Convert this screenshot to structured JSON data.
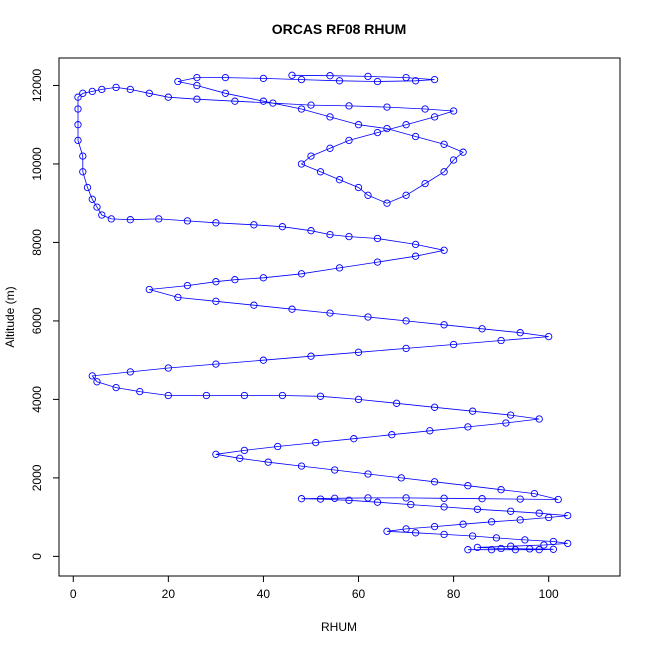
{
  "chart_data": {
    "type": "scatter",
    "title": "ORCAS RF08 RHUM",
    "xlabel": "RHUM",
    "ylabel": "Altitude (m)",
    "xlim": [
      -3,
      115
    ],
    "ylim": [
      -500,
      12700
    ],
    "xticks": [
      0,
      20,
      40,
      60,
      80,
      100
    ],
    "yticks": [
      0,
      2000,
      4000,
      6000,
      8000,
      10000,
      12000
    ],
    "grid": false,
    "legend": "none",
    "marker": "open-circle",
    "connected": true,
    "color": "#0000ff",
    "series": [
      {
        "points": [
          [
            83,
            170
          ],
          [
            88,
            170
          ],
          [
            93,
            170
          ],
          [
            98,
            170
          ],
          [
            101,
            180
          ],
          [
            96,
            190
          ],
          [
            90,
            200
          ],
          [
            85,
            230
          ],
          [
            92,
            260
          ],
          [
            99,
            290
          ],
          [
            104,
            330
          ],
          [
            101,
            380
          ],
          [
            95,
            420
          ],
          [
            89,
            470
          ],
          [
            84,
            520
          ],
          [
            78,
            560
          ],
          [
            72,
            600
          ],
          [
            66,
            640
          ],
          [
            70,
            700
          ],
          [
            76,
            760
          ],
          [
            82,
            820
          ],
          [
            88,
            880
          ],
          [
            94,
            930
          ],
          [
            100,
            990
          ],
          [
            104,
            1040
          ],
          [
            98,
            1100
          ],
          [
            92,
            1150
          ],
          [
            85,
            1200
          ],
          [
            78,
            1260
          ],
          [
            71,
            1320
          ],
          [
            64,
            1380
          ],
          [
            58,
            1430
          ],
          [
            52,
            1460
          ],
          [
            48,
            1470
          ],
          [
            55,
            1480
          ],
          [
            62,
            1490
          ],
          [
            70,
            1490
          ],
          [
            78,
            1480
          ],
          [
            86,
            1470
          ],
          [
            94,
            1460
          ],
          [
            102,
            1450
          ],
          [
            97,
            1600
          ],
          [
            90,
            1700
          ],
          [
            83,
            1800
          ],
          [
            76,
            1900
          ],
          [
            69,
            2000
          ],
          [
            62,
            2100
          ],
          [
            55,
            2200
          ],
          [
            48,
            2300
          ],
          [
            41,
            2400
          ],
          [
            35,
            2500
          ],
          [
            30,
            2600
          ],
          [
            36,
            2700
          ],
          [
            43,
            2800
          ],
          [
            51,
            2900
          ],
          [
            59,
            3000
          ],
          [
            67,
            3100
          ],
          [
            75,
            3200
          ],
          [
            83,
            3300
          ],
          [
            91,
            3400
          ],
          [
            98,
            3500
          ],
          [
            92,
            3600
          ],
          [
            84,
            3700
          ],
          [
            76,
            3800
          ],
          [
            68,
            3900
          ],
          [
            60,
            4000
          ],
          [
            52,
            4080
          ],
          [
            44,
            4100
          ],
          [
            36,
            4100
          ],
          [
            28,
            4100
          ],
          [
            20,
            4100
          ],
          [
            14,
            4200
          ],
          [
            9,
            4300
          ],
          [
            5,
            4450
          ],
          [
            4,
            4600
          ],
          [
            12,
            4700
          ],
          [
            20,
            4800
          ],
          [
            30,
            4900
          ],
          [
            40,
            5000
          ],
          [
            50,
            5100
          ],
          [
            60,
            5200
          ],
          [
            70,
            5300
          ],
          [
            80,
            5400
          ],
          [
            90,
            5500
          ],
          [
            100,
            5600
          ],
          [
            94,
            5700
          ],
          [
            86,
            5800
          ],
          [
            78,
            5900
          ],
          [
            70,
            6000
          ],
          [
            62,
            6100
          ],
          [
            54,
            6200
          ],
          [
            46,
            6300
          ],
          [
            38,
            6400
          ],
          [
            30,
            6500
          ],
          [
            22,
            6600
          ],
          [
            16,
            6800
          ],
          [
            24,
            6900
          ],
          [
            30,
            7000
          ],
          [
            34,
            7050
          ],
          [
            40,
            7100
          ],
          [
            48,
            7200
          ],
          [
            56,
            7350
          ],
          [
            64,
            7500
          ],
          [
            72,
            7650
          ],
          [
            78,
            7800
          ],
          [
            72,
            7950
          ],
          [
            64,
            8100
          ],
          [
            58,
            8150
          ],
          [
            54,
            8200
          ],
          [
            50,
            8300
          ],
          [
            44,
            8400
          ],
          [
            38,
            8450
          ],
          [
            30,
            8500
          ],
          [
            24,
            8550
          ],
          [
            18,
            8600
          ],
          [
            12,
            8580
          ],
          [
            8,
            8600
          ],
          [
            6,
            8700
          ],
          [
            5,
            8900
          ],
          [
            4,
            9100
          ],
          [
            3,
            9400
          ],
          [
            2,
            9800
          ],
          [
            2,
            10200
          ],
          [
            1,
            10600
          ],
          [
            1,
            11000
          ],
          [
            1,
            11400
          ],
          [
            1,
            11700
          ],
          [
            2,
            11800
          ],
          [
            4,
            11850
          ],
          [
            6,
            11900
          ],
          [
            9,
            11950
          ],
          [
            12,
            11900
          ],
          [
            16,
            11800
          ],
          [
            20,
            11700
          ],
          [
            26,
            11650
          ],
          [
            34,
            11600
          ],
          [
            42,
            11550
          ],
          [
            50,
            11500
          ],
          [
            58,
            11480
          ],
          [
            66,
            11450
          ],
          [
            74,
            11400
          ],
          [
            80,
            11350
          ],
          [
            76,
            11200
          ],
          [
            70,
            11000
          ],
          [
            64,
            10800
          ],
          [
            58,
            10600
          ],
          [
            54,
            10400
          ],
          [
            50,
            10200
          ],
          [
            48,
            10000
          ],
          [
            52,
            9800
          ],
          [
            56,
            9600
          ],
          [
            60,
            9400
          ],
          [
            62,
            9200
          ],
          [
            66,
            9000
          ],
          [
            70,
            9200
          ],
          [
            74,
            9500
          ],
          [
            78,
            9800
          ],
          [
            80,
            10100
          ],
          [
            82,
            10300
          ],
          [
            78,
            10500
          ],
          [
            72,
            10700
          ],
          [
            66,
            10900
          ],
          [
            60,
            11000
          ],
          [
            54,
            11200
          ],
          [
            48,
            11400
          ],
          [
            40,
            11600
          ],
          [
            32,
            11800
          ],
          [
            26,
            12000
          ],
          [
            22,
            12100
          ],
          [
            26,
            12200
          ],
          [
            32,
            12200
          ],
          [
            40,
            12180
          ],
          [
            48,
            12150
          ],
          [
            56,
            12120
          ],
          [
            64,
            12100
          ],
          [
            72,
            12120
          ],
          [
            76,
            12150
          ],
          [
            70,
            12200
          ],
          [
            62,
            12230
          ],
          [
            54,
            12250
          ],
          [
            46,
            12260
          ]
        ]
      }
    ]
  }
}
